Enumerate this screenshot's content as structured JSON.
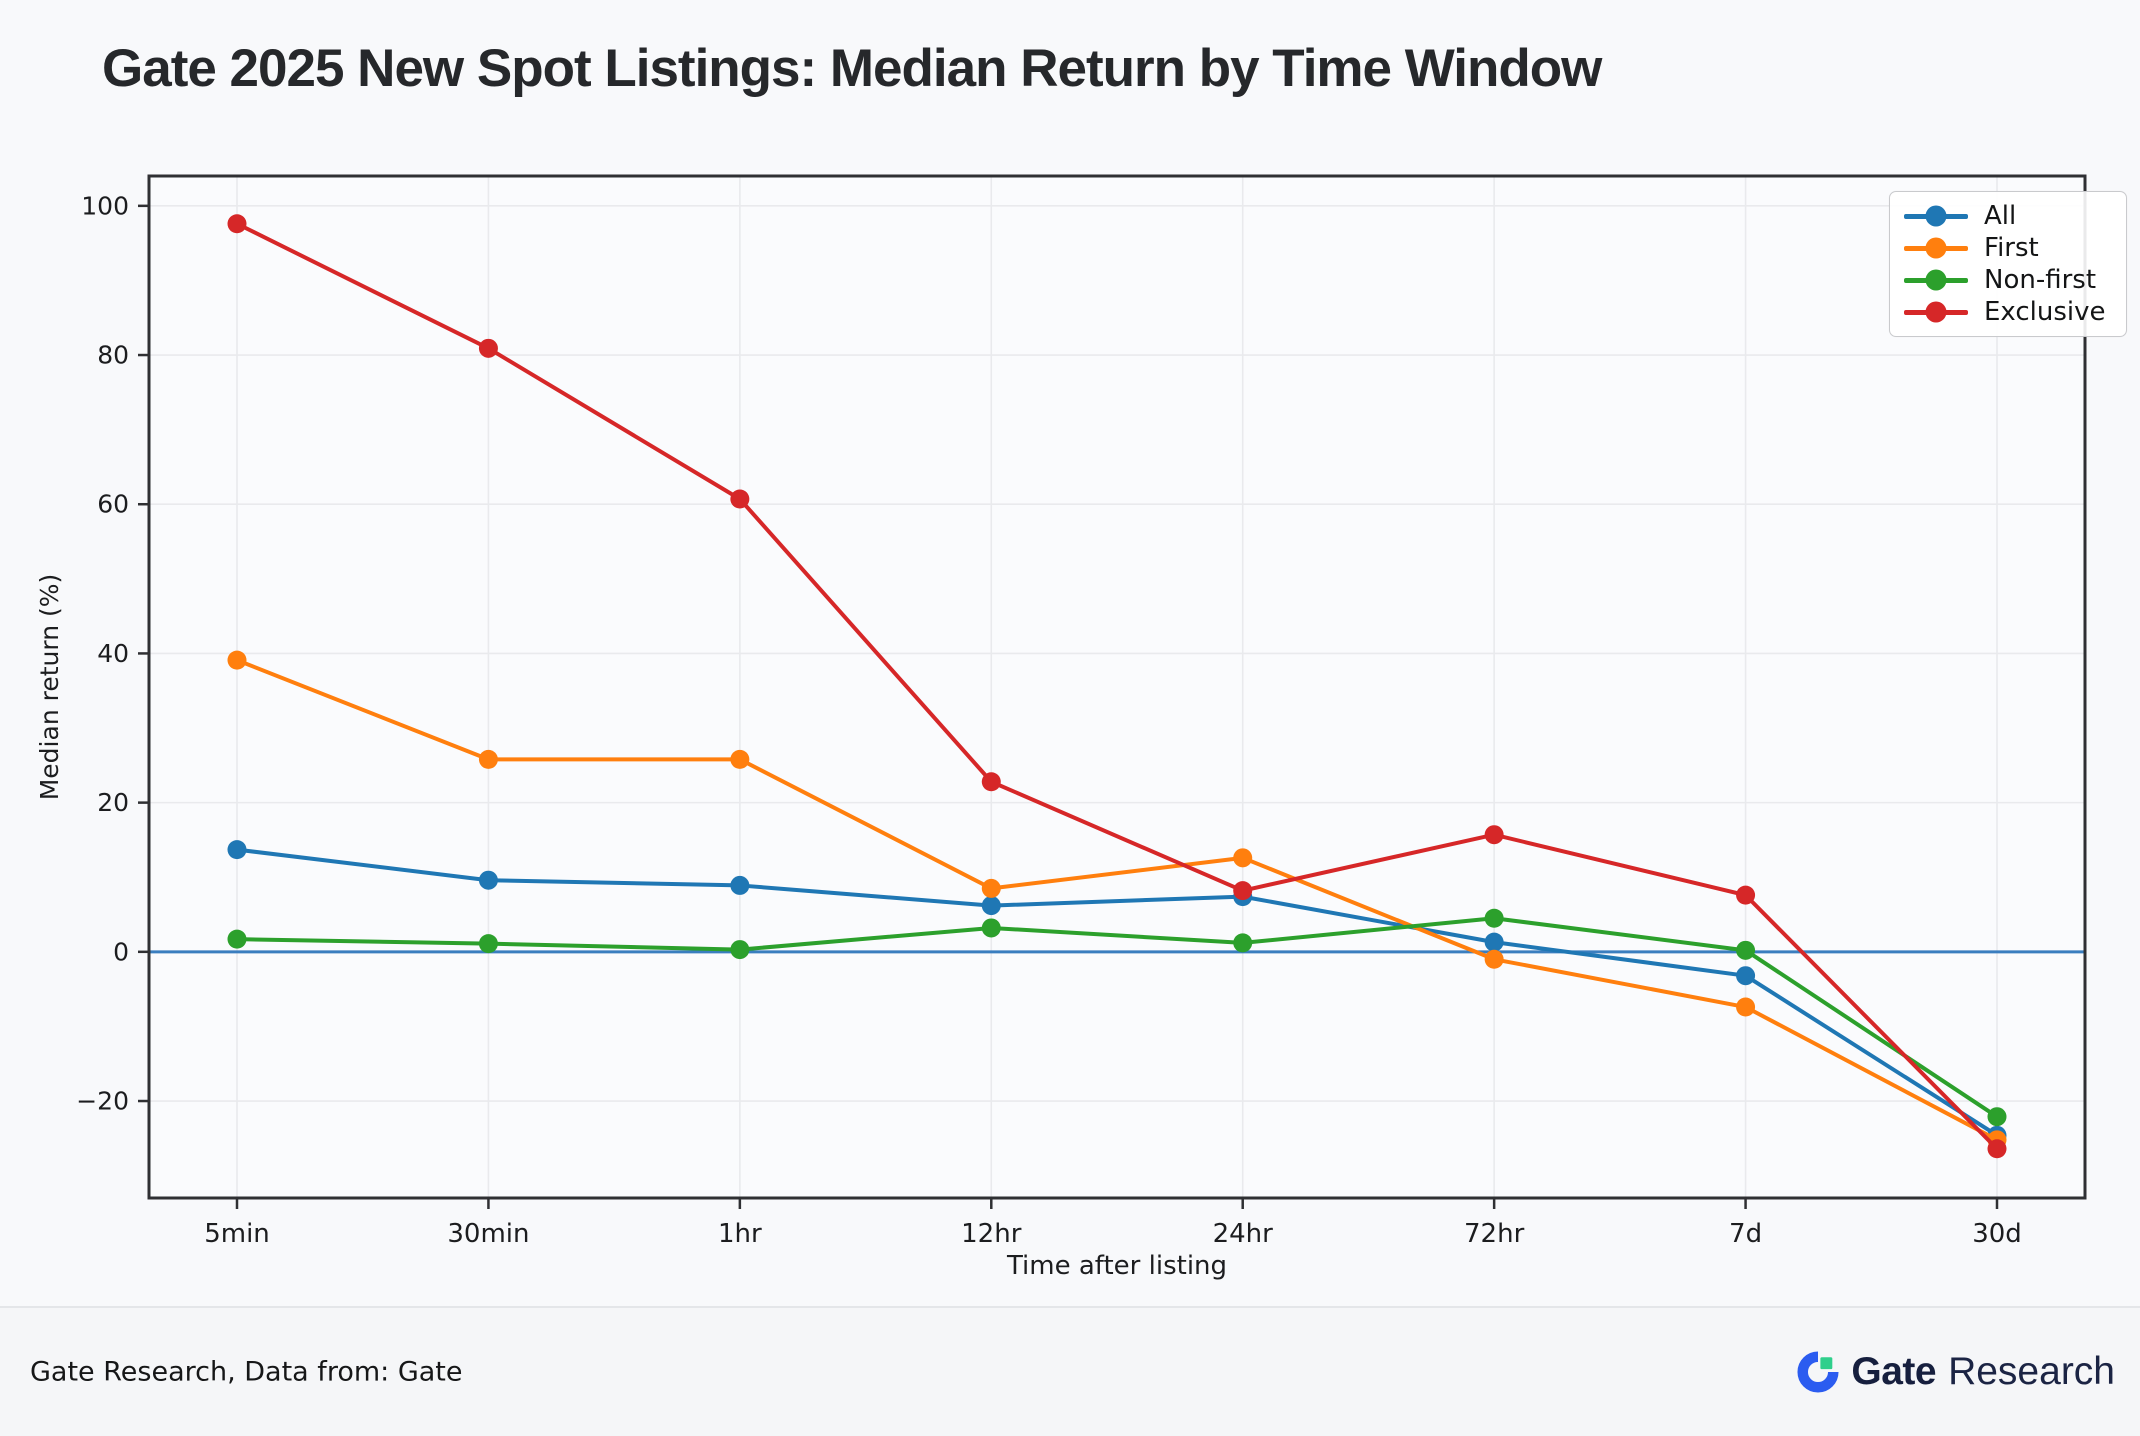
{
  "page": {
    "title": "Gate 2025 New Spot Listings: Median Return by Time Window",
    "footer": {
      "source_text": "Gate Research, Data from: Gate",
      "brand_name": "Gate",
      "brand_suffix": "Research"
    }
  },
  "chart_data": {
    "type": "line",
    "title": "Gate 2025 New Spot Listings: Median Return by Time Window",
    "xlabel": "Time after listing",
    "ylabel": "Median return (%)",
    "categories": [
      "5min",
      "30min",
      "1hr",
      "12hr",
      "24hr",
      "72hr",
      "7d",
      "30d"
    ],
    "y_ticks": [
      100,
      80,
      60,
      40,
      20,
      0,
      -20
    ],
    "ylim": [
      -33,
      104
    ],
    "grid": true,
    "zero_line": true,
    "zero_line_color": "#3a7ebf",
    "legend_position": "upper right",
    "series": [
      {
        "name": "All",
        "color": "#1f77b4",
        "values": [
          13.7,
          9.6,
          8.9,
          6.2,
          7.4,
          1.3,
          -3.2,
          -24.6
        ]
      },
      {
        "name": "First",
        "color": "#ff7f0e",
        "values": [
          39.1,
          25.8,
          25.8,
          8.5,
          12.6,
          -1.0,
          -7.4,
          -25.2
        ]
      },
      {
        "name": "Non-first",
        "color": "#2ca02c",
        "values": [
          1.7,
          1.1,
          0.3,
          3.2,
          1.2,
          4.5,
          0.2,
          -22.1
        ]
      },
      {
        "name": "Exclusive",
        "color": "#d62728",
        "values": [
          97.6,
          80.9,
          60.7,
          22.8,
          8.2,
          15.7,
          7.6,
          -26.4
        ]
      }
    ]
  }
}
